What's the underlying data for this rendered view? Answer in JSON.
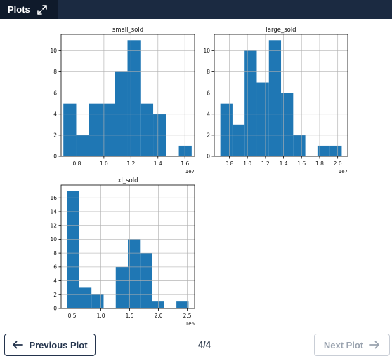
{
  "header": {
    "title": "Plots",
    "expand_icon": "expand-arrows-icon"
  },
  "footer": {
    "previous_label": "Previous Plot",
    "next_label": "Next Plot",
    "page": "4/4",
    "previous_icon": "arrow-left-icon",
    "next_icon": "arrow-right-icon"
  },
  "colors": {
    "bar": "#1f77b4",
    "header_bg": "#1b2a41",
    "header_active": "#0f1a2b"
  },
  "chart_data": [
    {
      "type": "bar",
      "title": "small_sold",
      "grid": true,
      "offset_label": "1e7",
      "xlim": [
        0.6833,
        1.6717
      ],
      "ylim": [
        0,
        11.55
      ],
      "bin_edges": [
        0.7,
        0.795,
        0.89,
        0.985,
        1.08,
        1.175,
        1.27,
        1.365,
        1.46,
        1.555,
        1.65
      ],
      "counts": [
        5,
        2,
        5,
        5,
        8,
        11,
        5,
        4,
        0,
        1
      ],
      "xticks": [
        0.8,
        1.0,
        1.2,
        1.4,
        1.6
      ],
      "xtick_labels": [
        "0.8",
        "1.0",
        "1.2",
        "1.4",
        "1.6"
      ],
      "yticks": [
        0,
        2,
        4,
        6,
        8,
        10
      ],
      "ytick_labels": [
        "0",
        "2",
        "4",
        "6",
        "8",
        "10"
      ]
    },
    {
      "type": "bar",
      "title": "large_sold",
      "grid": true,
      "offset_label": "1e7",
      "xlim": [
        0.6327,
        2.1117
      ],
      "ylim": [
        0,
        11.55
      ],
      "bin_edges": [
        0.7,
        0.8345,
        0.969,
        1.1035,
        1.238,
        1.3725,
        1.507,
        1.6415,
        1.776,
        1.9105,
        2.045
      ],
      "counts": [
        5,
        3,
        10,
        7,
        11,
        6,
        2,
        0,
        1,
        1
      ],
      "xticks": [
        0.8,
        1.0,
        1.2,
        1.4,
        1.6,
        1.8,
        2.0
      ],
      "xtick_labels": [
        "0.8",
        "1.0",
        "1.2",
        "1.4",
        "1.6",
        "1.8",
        "2.0"
      ],
      "yticks": [
        0,
        2,
        4,
        6,
        8,
        10
      ],
      "ytick_labels": [
        "0",
        "2",
        "4",
        "6",
        "8",
        "10"
      ]
    },
    {
      "type": "bar",
      "title": "xl_sold",
      "grid": true,
      "offset_label": "1e6",
      "xlim": [
        0.3106,
        2.6269
      ],
      "ylim": [
        0,
        17.85
      ],
      "bin_edges": [
        0.416,
        0.6266,
        0.8372,
        1.0478,
        1.2584,
        1.469,
        1.6796,
        1.8902,
        2.1008,
        2.3114,
        2.522
      ],
      "counts": [
        17,
        3,
        2,
        0,
        6,
        10,
        8,
        1,
        0,
        1
      ],
      "xticks": [
        0.5,
        1.0,
        1.5,
        2.0,
        2.5
      ],
      "xtick_labels": [
        "0.5",
        "1.0",
        "1.5",
        "2.0",
        "2.5"
      ],
      "yticks": [
        0,
        2,
        4,
        6,
        8,
        10,
        12,
        14,
        16
      ],
      "ytick_labels": [
        "0",
        "2",
        "4",
        "6",
        "8",
        "10",
        "12",
        "14",
        "16"
      ]
    }
  ]
}
